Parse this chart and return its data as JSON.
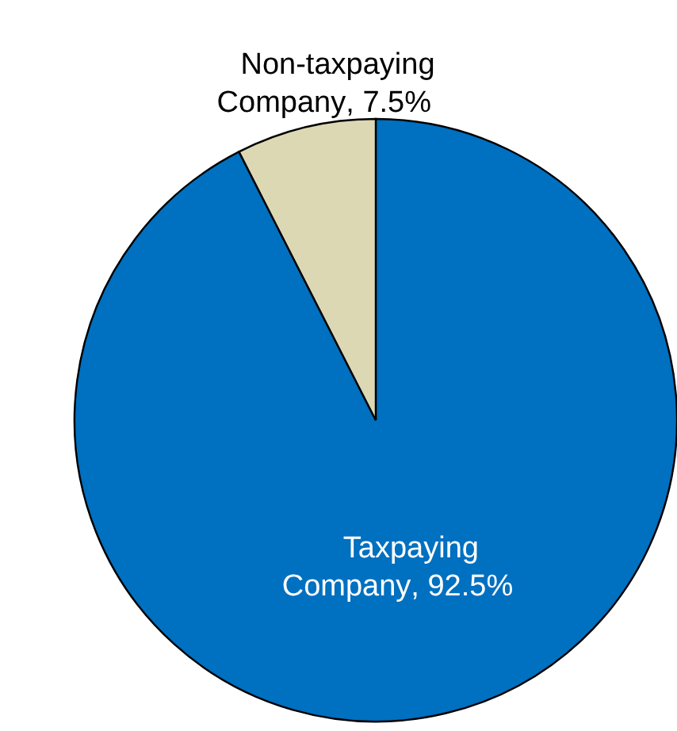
{
  "chart_data": {
    "type": "pie",
    "categories": [
      "Taxpaying Company",
      "Non-taxpaying Company"
    ],
    "values": [
      92.5,
      7.5
    ],
    "colors": [
      "#0070c0",
      "#ddd8b4"
    ],
    "value_labels": [
      ", 92.5%",
      ", 7.5%"
    ]
  }
}
